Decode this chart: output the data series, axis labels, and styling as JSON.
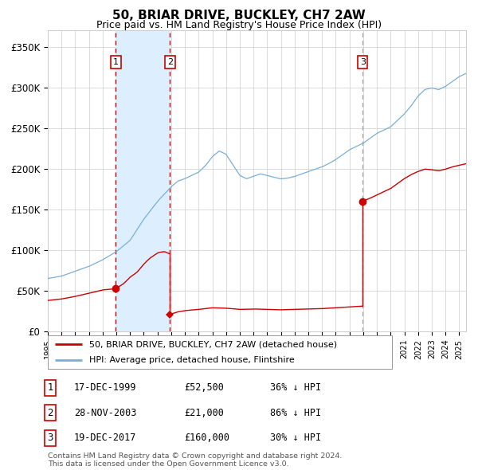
{
  "title": "50, BRIAR DRIVE, BUCKLEY, CH7 2AW",
  "subtitle": "Price paid vs. HM Land Registry's House Price Index (HPI)",
  "title_fontsize": 11,
  "subtitle_fontsize": 9,
  "ylabel_ticks": [
    "£0",
    "£50K",
    "£100K",
    "£150K",
    "£200K",
    "£250K",
    "£300K",
    "£350K"
  ],
  "ylabel_values": [
    0,
    50000,
    100000,
    150000,
    200000,
    250000,
    300000,
    350000
  ],
  "ylim": [
    0,
    370000
  ],
  "xlim_start": 1995.0,
  "xlim_end": 2025.5,
  "sale1_date": 1999.96,
  "sale1_price": 52500,
  "sale1_label": "1",
  "sale2_date": 2003.91,
  "sale2_price": 21000,
  "sale2_label": "2",
  "sale3_date": 2017.96,
  "sale3_price": 160000,
  "sale3_label": "3",
  "hpi_color": "#7aaed6",
  "red_line_color": "#cc0000",
  "sale_dot_color": "#cc0000",
  "vline_color": "#cc0000",
  "vline3_color": "#aaaaaa",
  "shade_color": "#ddeeff",
  "grid_color": "#cccccc",
  "background_color": "#ffffff",
  "legend_label_red": "50, BRIAR DRIVE, BUCKLEY, CH7 2AW (detached house)",
  "legend_label_blue": "HPI: Average price, detached house, Flintshire",
  "table_data": [
    [
      "1",
      "17-DEC-1999",
      "£52,500",
      "36% ↓ HPI"
    ],
    [
      "2",
      "28-NOV-2003",
      "£21,000",
      "86% ↓ HPI"
    ],
    [
      "3",
      "19-DEC-2017",
      "£160,000",
      "30% ↓ HPI"
    ]
  ],
  "footer_text": "Contains HM Land Registry data © Crown copyright and database right 2024.\nThis data is licensed under the Open Government Licence v3.0.",
  "hpi_keypoints": [
    [
      1995.0,
      65000
    ],
    [
      1996.0,
      68000
    ],
    [
      1997.0,
      74000
    ],
    [
      1998.0,
      80000
    ],
    [
      1999.0,
      88000
    ],
    [
      2000.0,
      98000
    ],
    [
      2001.0,
      112000
    ],
    [
      2002.0,
      138000
    ],
    [
      2003.0,
      160000
    ],
    [
      2004.0,
      178000
    ],
    [
      2004.5,
      185000
    ],
    [
      2005.0,
      188000
    ],
    [
      2005.5,
      192000
    ],
    [
      2006.0,
      196000
    ],
    [
      2006.5,
      204000
    ],
    [
      2007.0,
      215000
    ],
    [
      2007.5,
      222000
    ],
    [
      2008.0,
      218000
    ],
    [
      2008.5,
      205000
    ],
    [
      2009.0,
      192000
    ],
    [
      2009.5,
      188000
    ],
    [
      2010.0,
      191000
    ],
    [
      2010.5,
      194000
    ],
    [
      2011.0,
      192000
    ],
    [
      2011.5,
      190000
    ],
    [
      2012.0,
      188000
    ],
    [
      2012.5,
      189000
    ],
    [
      2013.0,
      191000
    ],
    [
      2013.5,
      194000
    ],
    [
      2014.0,
      197000
    ],
    [
      2014.5,
      200000
    ],
    [
      2015.0,
      203000
    ],
    [
      2015.5,
      207000
    ],
    [
      2016.0,
      212000
    ],
    [
      2016.5,
      218000
    ],
    [
      2017.0,
      224000
    ],
    [
      2017.5,
      228000
    ],
    [
      2018.0,
      232000
    ],
    [
      2018.5,
      238000
    ],
    [
      2019.0,
      244000
    ],
    [
      2019.5,
      248000
    ],
    [
      2020.0,
      252000
    ],
    [
      2020.5,
      260000
    ],
    [
      2021.0,
      268000
    ],
    [
      2021.5,
      278000
    ],
    [
      2022.0,
      290000
    ],
    [
      2022.5,
      298000
    ],
    [
      2023.0,
      300000
    ],
    [
      2023.5,
      298000
    ],
    [
      2024.0,
      302000
    ],
    [
      2024.5,
      308000
    ],
    [
      2025.0,
      314000
    ],
    [
      2025.5,
      318000
    ]
  ],
  "red_keypoints_seg1": [
    [
      1995.0,
      38000
    ],
    [
      1996.0,
      40000
    ],
    [
      1997.0,
      43000
    ],
    [
      1998.0,
      47000
    ],
    [
      1999.0,
      51000
    ],
    [
      1999.96,
      52500
    ]
  ],
  "red_keypoints_seg2": [
    [
      1999.96,
      52500
    ],
    [
      2000.5,
      58000
    ],
    [
      2001.0,
      66000
    ],
    [
      2001.5,
      72000
    ],
    [
      2002.0,
      82000
    ],
    [
      2002.5,
      90000
    ],
    [
      2003.0,
      96000
    ],
    [
      2003.5,
      98000
    ],
    [
      2003.91,
      95000
    ]
  ],
  "red_keypoints_seg3": [
    [
      2003.91,
      21000
    ],
    [
      2004.5,
      24000
    ],
    [
      2005.0,
      25500
    ],
    [
      2006.0,
      27000
    ],
    [
      2007.0,
      29000
    ],
    [
      2008.0,
      28500
    ],
    [
      2009.0,
      27000
    ],
    [
      2010.0,
      27500
    ],
    [
      2011.0,
      27000
    ],
    [
      2012.0,
      26500
    ],
    [
      2013.0,
      27000
    ],
    [
      2014.0,
      27500
    ],
    [
      2015.0,
      28000
    ],
    [
      2016.0,
      29000
    ],
    [
      2017.0,
      30000
    ],
    [
      2017.96,
      31000
    ]
  ],
  "red_keypoints_seg4": [
    [
      2017.96,
      160000
    ],
    [
      2018.5,
      164000
    ],
    [
      2019.0,
      168000
    ],
    [
      2019.5,
      172000
    ],
    [
      2020.0,
      176000
    ],
    [
      2020.5,
      182000
    ],
    [
      2021.0,
      188000
    ],
    [
      2021.5,
      193000
    ],
    [
      2022.0,
      197000
    ],
    [
      2022.5,
      200000
    ],
    [
      2023.0,
      199000
    ],
    [
      2023.5,
      198000
    ],
    [
      2024.0,
      200000
    ],
    [
      2024.5,
      203000
    ],
    [
      2025.0,
      205000
    ],
    [
      2025.5,
      207000
    ]
  ]
}
